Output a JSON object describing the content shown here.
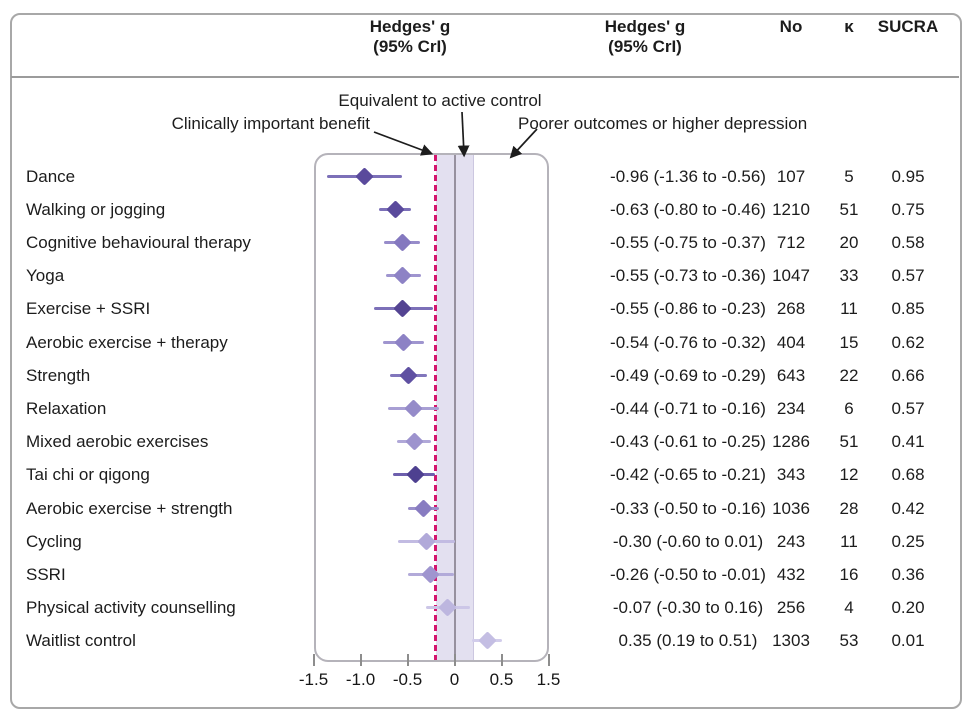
{
  "figure": {
    "columns": {
      "plot_header_line1": "Hedges' g",
      "plot_header_line2": "(95% CrI)",
      "value_header_line1": "Hedges' g",
      "value_header_line2": "(95% CrI)",
      "n_header": "No",
      "kappa_header": "κ",
      "sucra_header": "SUCRA"
    },
    "annotations": {
      "benefit": "Clinically important benefit",
      "equivalent": "Equivalent to active control",
      "poorer": "Poorer outcomes or higher depression"
    }
  },
  "colors": {
    "dashed_threshold_line": "#d4156e",
    "equivalence_band_fill": "#e3e0f0",
    "zero_line": "#97919f",
    "frame_border": "#a8a8a8",
    "plot_border": "#b5b3ba",
    "text": "#1c1c1c"
  },
  "chart_data": {
    "type": "forest",
    "effect_measure": "Hedges' g (95% CrI)",
    "axis": {
      "tick_labels": [
        "-1.5",
        "-1.0",
        "-0.5",
        "0",
        "0.5",
        "1.5"
      ],
      "tick_positions": [
        -1.5,
        -1.0,
        -0.5,
        0,
        0.5,
        1.0
      ],
      "note": "rightmost tick labelled 1.5 on compressed axis",
      "clinically_important_threshold": -0.2,
      "equivalence_band": [
        -0.2,
        0.2
      ]
    },
    "rows": [
      {
        "label": "Dance",
        "est": -0.96,
        "lo": -1.36,
        "hi": -0.56,
        "ci_text": "-0.96 (-1.36 to -0.56)",
        "n": "107",
        "k": "5",
        "sucra": "0.95",
        "diamond": "#5a4a9c",
        "line": "#7c70b8"
      },
      {
        "label": "Walking or jogging",
        "est": -0.63,
        "lo": -0.8,
        "hi": -0.46,
        "ci_text": "-0.63 (-0.80 to -0.46)",
        "n": "1210",
        "k": "51",
        "sucra": "0.75",
        "diamond": "#5a4a9c",
        "line": "#7c70b8"
      },
      {
        "label": "Cognitive behavioural therapy",
        "est": -0.55,
        "lo": -0.75,
        "hi": -0.37,
        "ci_text": "-0.55 (-0.75 to -0.37)",
        "n": "712",
        "k": "20",
        "sucra": "0.58",
        "diamond": "#8478bf",
        "line": "#978cca"
      },
      {
        "label": "Yoga",
        "est": -0.55,
        "lo": -0.73,
        "hi": -0.36,
        "ci_text": "-0.55 (-0.73 to -0.36)",
        "n": "1047",
        "k": "33",
        "sucra": "0.57",
        "diamond": "#8d82c5",
        "line": "#9f95cf"
      },
      {
        "label": "Exercise + SSRI",
        "est": -0.55,
        "lo": -0.86,
        "hi": -0.23,
        "ci_text": "-0.55 (-0.86 to -0.23)",
        "n": "268",
        "k": "11",
        "sucra": "0.85",
        "diamond": "#544492",
        "line": "#7c70b8"
      },
      {
        "label": "Aerobic exercise + therapy",
        "est": -0.54,
        "lo": -0.76,
        "hi": -0.32,
        "ci_text": "-0.54 (-0.76 to -0.32)",
        "n": "404",
        "k": "15",
        "sucra": "0.62",
        "diamond": "#8d82c5",
        "line": "#9f95cf"
      },
      {
        "label": "Strength",
        "est": -0.49,
        "lo": -0.69,
        "hi": -0.29,
        "ci_text": "-0.49 (-0.69 to -0.29)",
        "n": "643",
        "k": "22",
        "sucra": "0.66",
        "diamond": "#5f50a2",
        "line": "#8176bc"
      },
      {
        "label": "Relaxation",
        "est": -0.44,
        "lo": -0.71,
        "hi": -0.16,
        "ci_text": "-0.44 (-0.71 to -0.16)",
        "n": "234",
        "k": "6",
        "sucra": "0.57",
        "diamond": "#958bc9",
        "line": "#a89fd4"
      },
      {
        "label": "Mixed aerobic exercises",
        "est": -0.43,
        "lo": -0.61,
        "hi": -0.25,
        "ci_text": "-0.43 (-0.61 to -0.25)",
        "n": "1286",
        "k": "51",
        "sucra": "0.41",
        "diamond": "#9d93ce",
        "line": "#b0a8d8"
      },
      {
        "label": "Tai chi or qigong",
        "est": -0.42,
        "lo": -0.65,
        "hi": -0.21,
        "ci_text": "-0.42 (-0.65 to -0.21)",
        "n": "343",
        "k": "12",
        "sucra": "0.68",
        "diamond": "#4e4090",
        "line": "#6d5fad"
      },
      {
        "label": "Aerobic exercise + strength",
        "est": -0.33,
        "lo": -0.5,
        "hi": -0.16,
        "ci_text": "-0.33 (-0.50 to -0.16)",
        "n": "1036",
        "k": "28",
        "sucra": "0.42",
        "diamond": "#887cc1",
        "line": "#9a90cb"
      },
      {
        "label": "Cycling",
        "est": -0.3,
        "lo": -0.6,
        "hi": 0.01,
        "ci_text": "-0.30 (-0.60 to 0.01)",
        "n": "243",
        "k": "11",
        "sucra": "0.25",
        "diamond": "#b1a9d9",
        "line": "#c2bbe2"
      },
      {
        "label": "SSRI",
        "est": -0.26,
        "lo": -0.5,
        "hi": -0.01,
        "ci_text": "-0.26 (-0.50 to -0.01)",
        "n": "432",
        "k": "16",
        "sucra": "0.36",
        "diamond": "#9f95cf",
        "line": "#b2aad9"
      },
      {
        "label": "Physical activity counselling",
        "est": -0.07,
        "lo": -0.3,
        "hi": 0.16,
        "ci_text": "-0.07 (-0.30 to 0.16)",
        "n": "256",
        "k": "4",
        "sucra": "0.20",
        "diamond": "#bdb6df",
        "line": "#ccc6e7"
      },
      {
        "label": "Waitlist control",
        "est": 0.35,
        "lo": 0.19,
        "hi": 0.51,
        "ci_text": "0.35 (0.19 to 0.51)",
        "n": "1303",
        "k": "53",
        "sucra": "0.01",
        "diamond": "#c4bee3",
        "line": "#d2cdeb"
      }
    ]
  }
}
